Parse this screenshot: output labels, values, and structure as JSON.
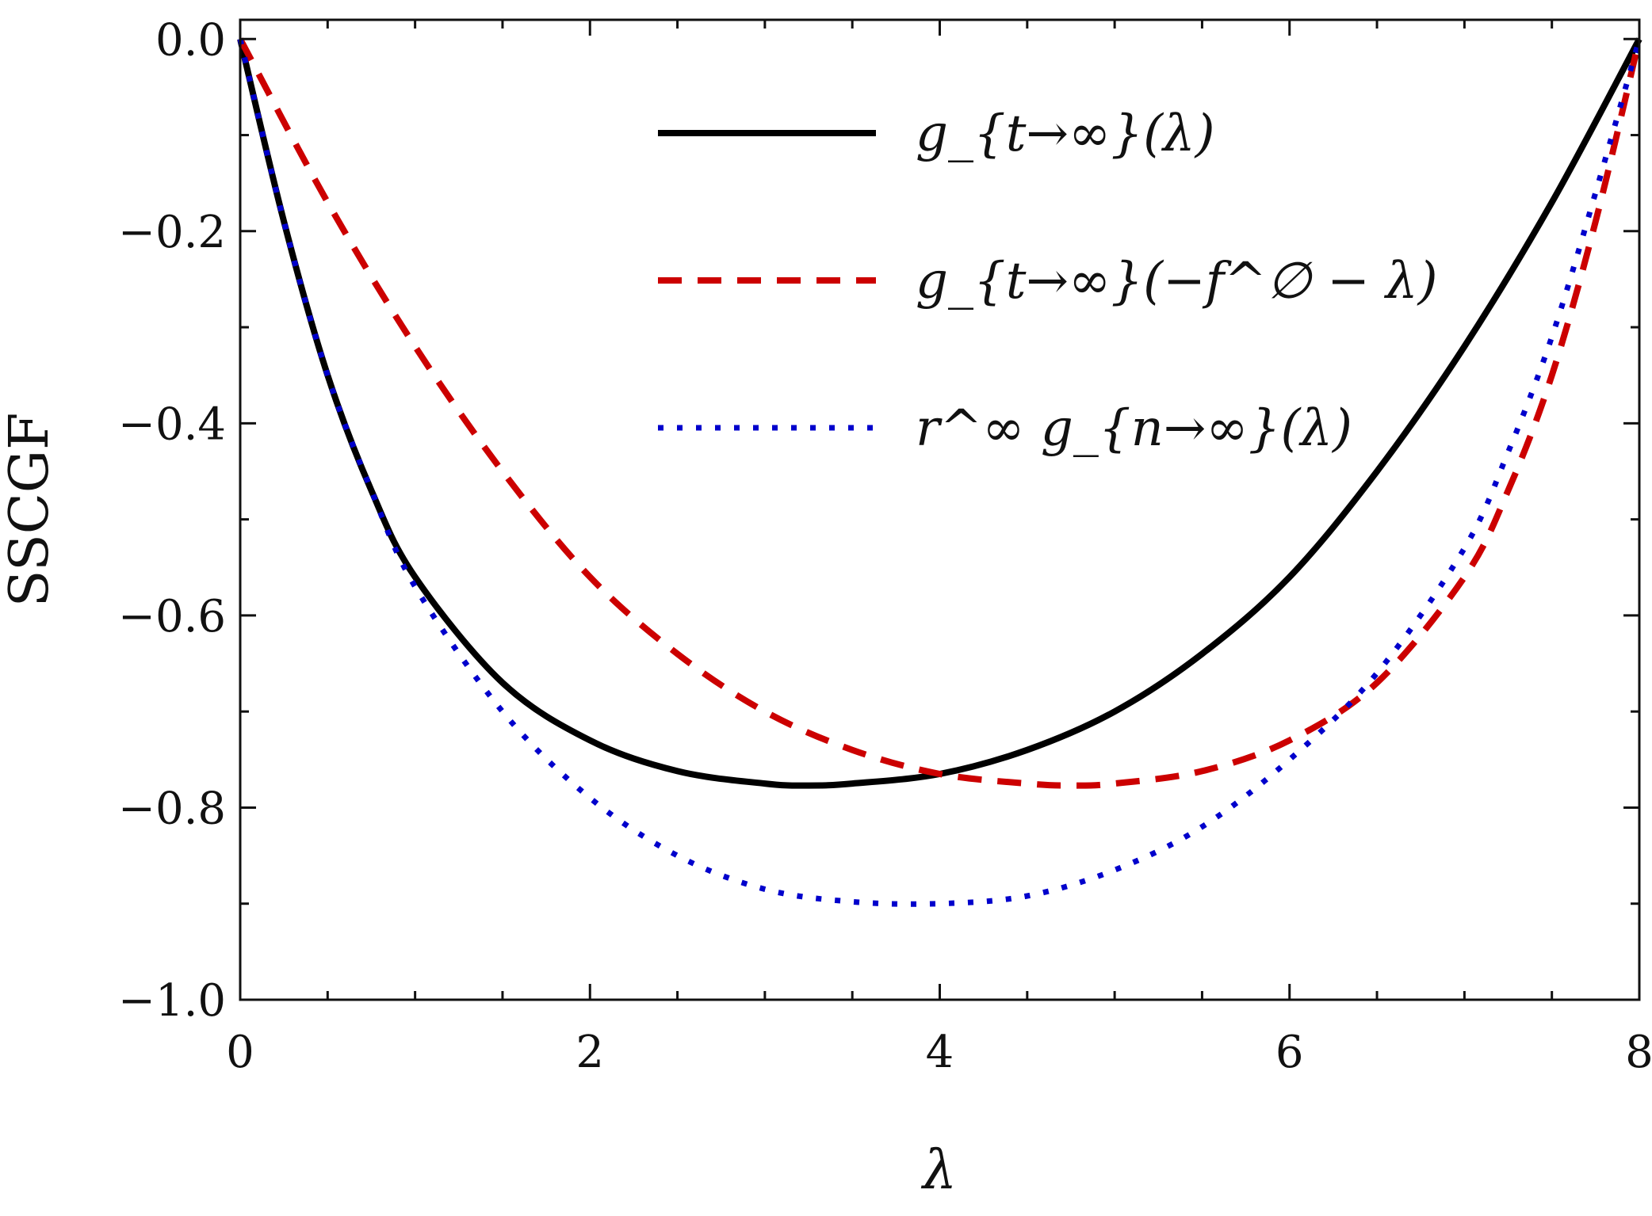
{
  "chart_data": {
    "type": "line",
    "title": "",
    "xlabel": "λ",
    "ylabel": "SSCGF",
    "xlim": [
      0,
      8
    ],
    "ylim": [
      -1.0,
      0.02
    ],
    "x_ticks": [
      "0",
      "2",
      "4",
      "6",
      "8"
    ],
    "y_ticks": [
      "0.0",
      "−0.2",
      "−0.4",
      "−0.6",
      "−0.8",
      "−1.0"
    ],
    "grid": false,
    "legend_position": "top-center",
    "series": [
      {
        "name": "g_{t→∞}(λ)",
        "style": "solid",
        "color": "#000000",
        "x": [
          0,
          0.25,
          0.5,
          0.75,
          1.0,
          1.5,
          2.0,
          2.5,
          3.0,
          3.25,
          3.5,
          4.0,
          4.5,
          5.0,
          5.5,
          6.0,
          6.5,
          7.0,
          7.5,
          8.0
        ],
        "y": [
          0.0,
          -0.19,
          -0.35,
          -0.47,
          -0.56,
          -0.67,
          -0.73,
          -0.762,
          -0.775,
          -0.777,
          -0.775,
          -0.765,
          -0.74,
          -0.7,
          -0.64,
          -0.56,
          -0.45,
          -0.32,
          -0.17,
          0.0
        ]
      },
      {
        "name": "g_{t→∞}(−f^∅ − λ)",
        "style": "dashed",
        "color": "#cc0000",
        "x": [
          0,
          0.5,
          1.0,
          1.5,
          2.0,
          2.5,
          3.0,
          3.5,
          4.0,
          4.5,
          4.75,
          5.0,
          5.5,
          6.0,
          6.5,
          7.0,
          7.25,
          7.5,
          7.75,
          8.0
        ],
        "y": [
          0.0,
          -0.17,
          -0.32,
          -0.45,
          -0.56,
          -0.64,
          -0.7,
          -0.74,
          -0.765,
          -0.775,
          -0.777,
          -0.775,
          -0.762,
          -0.73,
          -0.67,
          -0.56,
          -0.47,
          -0.35,
          -0.19,
          0.0
        ]
      },
      {
        "name": "r^∞ g_{n→∞}(λ)",
        "style": "dotted",
        "color": "#0000cc",
        "x": [
          0,
          0.25,
          0.5,
          0.75,
          1.0,
          1.5,
          2.0,
          2.5,
          3.0,
          3.5,
          4.0,
          4.5,
          5.0,
          5.5,
          6.0,
          6.5,
          7.0,
          7.25,
          7.5,
          7.75,
          8.0
        ],
        "y": [
          0.0,
          -0.19,
          -0.35,
          -0.47,
          -0.57,
          -0.7,
          -0.79,
          -0.85,
          -0.885,
          -0.898,
          -0.9,
          -0.892,
          -0.865,
          -0.82,
          -0.75,
          -0.66,
          -0.53,
          -0.43,
          -0.31,
          -0.16,
          0.0
        ]
      }
    ]
  }
}
